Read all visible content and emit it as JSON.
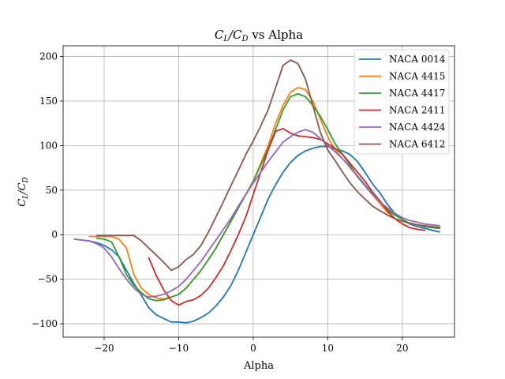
{
  "chart_data": {
    "type": "line",
    "title_main": "C",
    "title_sub_l": "L",
    "title_slash": "/C",
    "title_sub_d": "D",
    "title_rest": " vs Alpha",
    "xlabel": "Alpha",
    "ylabel_main": "C",
    "ylabel_sub_l": "L",
    "ylabel_slash": "/C",
    "ylabel_sub_d": "D",
    "xlim": [
      -25.5,
      27.0
    ],
    "ylim": [
      -115,
      212
    ],
    "xticks": [
      -20,
      -10,
      0,
      10,
      20
    ],
    "xtick_labels": [
      "−20",
      "−10",
      "0",
      "10",
      "20"
    ],
    "yticks": [
      -100,
      -50,
      0,
      50,
      100,
      150,
      200
    ],
    "ytick_labels": [
      "−100",
      "−50",
      "0",
      "50",
      "100",
      "150",
      "200"
    ],
    "grid": true,
    "legend_position": "top-right",
    "series": [
      {
        "name": "NACA 0014",
        "color": "#1f77b4",
        "x": [
          -24,
          -23,
          -22,
          -21,
          -20,
          -19,
          -18,
          -17,
          -16,
          -15,
          -14,
          -13,
          -12,
          -11,
          -10,
          -9,
          -8,
          -7,
          -6,
          -5,
          -4,
          -3,
          -2,
          -1,
          0,
          1,
          2,
          3,
          4,
          5,
          6,
          7,
          8,
          9,
          10,
          11,
          12,
          13,
          14,
          15,
          16,
          17,
          18,
          19,
          20,
          21,
          22,
          23,
          24,
          25
        ],
        "y": [
          -5,
          -6,
          -7,
          -9,
          -12,
          -17,
          -25,
          -40,
          -55,
          -68,
          -82,
          -90,
          -94,
          -98,
          -98,
          -99,
          -97,
          -93,
          -88,
          -80,
          -70,
          -57,
          -40,
          -20,
          0,
          20,
          40,
          56,
          70,
          81,
          89,
          94,
          97,
          99,
          99,
          96,
          94,
          90,
          82,
          70,
          57,
          47,
          34,
          24,
          17,
          12,
          9,
          7,
          5,
          3
        ]
      },
      {
        "name": "NACA 4415",
        "color": "#ff7f0e",
        "x": [
          -22,
          -21,
          -20,
          -19,
          -18,
          -17,
          -16,
          -15,
          -14,
          -13,
          -12,
          -11,
          -10,
          -9,
          -8,
          -7,
          -6,
          -5,
          -4,
          -3,
          -2,
          -1,
          0,
          1,
          2,
          3,
          4,
          5,
          6,
          7,
          8,
          9,
          10,
          11,
          12,
          13,
          14,
          15,
          16,
          17,
          18,
          19,
          20,
          21,
          22,
          23,
          24,
          25
        ],
        "y": [
          -2,
          -2,
          -2,
          -2,
          -5,
          -15,
          -45,
          -60,
          -67,
          -71,
          -72,
          -70,
          -67,
          -60,
          -50,
          -40,
          -28,
          -15,
          0,
          15,
          30,
          45,
          60,
          80,
          100,
          125,
          145,
          160,
          165,
          163,
          150,
          130,
          110,
          95,
          85,
          75,
          65,
          55,
          45,
          35,
          25,
          18,
          15,
          13,
          11,
          10,
          9,
          8
        ]
      },
      {
        "name": "NACA 4417",
        "color": "#2ca02c",
        "x": [
          -21,
          -20,
          -19,
          -18,
          -17,
          -16,
          -15,
          -14,
          -13,
          -12,
          -11,
          -10,
          -9,
          -8,
          -7,
          -6,
          -5,
          -4,
          -3,
          -2,
          -1,
          0,
          1,
          2,
          3,
          4,
          5,
          6,
          7,
          8,
          9,
          10,
          11,
          12,
          13,
          14,
          15,
          16,
          17,
          18,
          19,
          20,
          21,
          22,
          23,
          24,
          25
        ],
        "y": [
          -4,
          -5,
          -8,
          -25,
          -45,
          -57,
          -65,
          -72,
          -74,
          -73,
          -70,
          -67,
          -60,
          -50,
          -40,
          -28,
          -15,
          0,
          15,
          30,
          45,
          60,
          78,
          96,
          118,
          140,
          155,
          158,
          155,
          145,
          133,
          118,
          102,
          90,
          78,
          65,
          55,
          45,
          37,
          28,
          22,
          17,
          13,
          11,
          9,
          8,
          7
        ]
      },
      {
        "name": "NACA 2411",
        "color": "#d62728",
        "x": [
          -14,
          -13,
          -12,
          -11,
          -10,
          -9,
          -8,
          -7,
          -6,
          -5,
          -4,
          -3,
          -2,
          -1,
          0,
          1,
          2,
          3,
          4,
          5,
          6,
          7,
          8,
          9,
          10,
          11,
          12,
          13,
          14,
          15,
          16,
          17,
          18,
          19,
          20,
          21,
          22,
          23
        ],
        "y": [
          -26,
          -46,
          -62,
          -74,
          -79,
          -75,
          -73,
          -68,
          -60,
          -48,
          -35,
          -18,
          0,
          20,
          45,
          70,
          95,
          116,
          119,
          114,
          111,
          110,
          109,
          107,
          102,
          97,
          90,
          80,
          70,
          60,
          48,
          38,
          27,
          18,
          12,
          8,
          6,
          5
        ]
      },
      {
        "name": "NACA 4424",
        "color": "#9467bd",
        "x": [
          -24,
          -23,
          -22,
          -21,
          -20,
          -19,
          -18,
          -17,
          -16,
          -15,
          -14,
          -13,
          -12,
          -11,
          -10,
          -9,
          -8,
          -7,
          -6,
          -5,
          -4,
          -3,
          -2,
          -1,
          0,
          1,
          2,
          3,
          4,
          5,
          6,
          7,
          8,
          9,
          10,
          11,
          12,
          13,
          14,
          15,
          16,
          17,
          18,
          19,
          20,
          21,
          22,
          23,
          24,
          25
        ],
        "y": [
          -5,
          -6,
          -7,
          -10,
          -15,
          -25,
          -38,
          -50,
          -60,
          -67,
          -70,
          -69,
          -67,
          -63,
          -58,
          -50,
          -40,
          -30,
          -18,
          -6,
          6,
          18,
          32,
          45,
          58,
          70,
          82,
          93,
          104,
          110,
          115,
          118,
          115,
          108,
          100,
          93,
          85,
          76,
          66,
          56,
          46,
          37,
          30,
          24,
          19,
          16,
          14,
          12,
          11,
          10
        ]
      },
      {
        "name": "NACA 6412",
        "color": "#8c564b",
        "x": [
          -21,
          -20,
          -19,
          -18,
          -17,
          -16,
          -15,
          -14,
          -13,
          -12,
          -11,
          -10,
          -9,
          -8,
          -7,
          -6,
          -5,
          -4,
          -3,
          -2,
          -1,
          0,
          1,
          2,
          3,
          4,
          5,
          6,
          7,
          8,
          9,
          10,
          11,
          12,
          13,
          14,
          15,
          16,
          17,
          18,
          19,
          20,
          21,
          22,
          23,
          24,
          25
        ],
        "y": [
          -1,
          -1,
          -1,
          -1,
          -1,
          -1,
          -7,
          -15,
          -23,
          -31,
          -40,
          -36,
          -28,
          -22,
          -12,
          3,
          20,
          37,
          55,
          72,
          90,
          105,
          122,
          140,
          165,
          190,
          196,
          192,
          175,
          145,
          115,
          95,
          83,
          70,
          58,
          48,
          40,
          32,
          27,
          22,
          18,
          15,
          13,
          11,
          10,
          9,
          8
        ]
      }
    ]
  }
}
